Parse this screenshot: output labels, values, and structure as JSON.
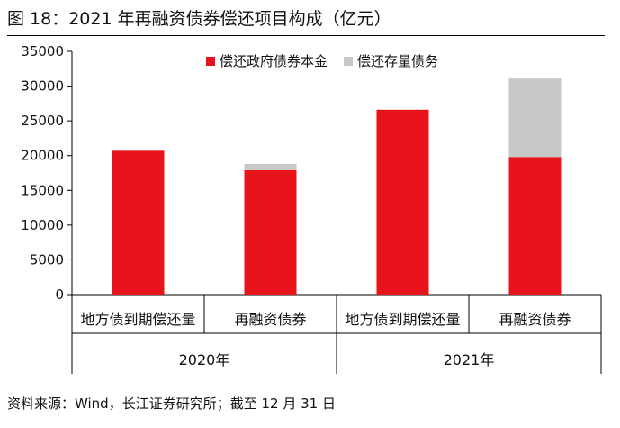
{
  "title": "图 18：2021 年再融资债券偿还项目构成（亿元）",
  "source": "资料来源：Wind，长江证券研究所；截至 12 月 31 日",
  "chart_data": {
    "type": "bar",
    "stacked": true,
    "groups": [
      {
        "label": "2020年",
        "categories": [
          "地方债到期偿还量",
          "再融资债券"
        ]
      },
      {
        "label": "2021年",
        "categories": [
          "地方债到期偿还量",
          "再融资债券"
        ]
      }
    ],
    "categories": [
      "地方债到期偿还量",
      "再融资债券",
      "地方债到期偿还量",
      "再融资债券"
    ],
    "series": [
      {
        "name": "偿还政府债券本金",
        "color": "#e8141c",
        "values": [
          20700,
          17900,
          26600,
          19800
        ]
      },
      {
        "name": "偿还存量债务",
        "color": "#c8c8c8",
        "values": [
          0,
          900,
          0,
          11300
        ]
      }
    ],
    "ylim": [
      0,
      35000
    ],
    "yticks": [
      "0",
      "5000",
      "10000",
      "15000",
      "20000",
      "25000",
      "30000",
      "35000"
    ],
    "grid": false,
    "legend_position": "top-right"
  }
}
